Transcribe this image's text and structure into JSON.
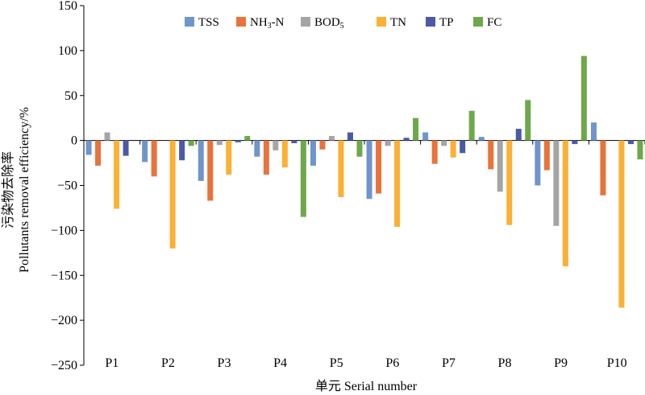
{
  "chart_data": {
    "type": "bar",
    "xlabel": "单元 Serial number",
    "ylabel_line1": "污染物去除率",
    "ylabel_line2": "Pollutants removal efficiency/%",
    "ylim": [
      -250,
      150
    ],
    "yticks": [
      150,
      100,
      50,
      0,
      -50,
      -100,
      -150,
      -200,
      -250
    ],
    "ytick_labels": [
      "150",
      "100",
      "50",
      "0",
      "−50",
      "−100",
      "−150",
      "−200",
      "−250"
    ],
    "grid": false,
    "legend_position": "top",
    "categories": [
      "P1",
      "P2",
      "P3",
      "P4",
      "P5",
      "P6",
      "P7",
      "P8",
      "P9",
      "P10"
    ],
    "series": [
      {
        "name": "TSS",
        "label_base": "TSS",
        "label_sub": "",
        "label_tail": "",
        "color": "#6f95cb",
        "values": [
          -16,
          -24,
          -45,
          -18,
          -28,
          -65,
          9,
          4,
          -50,
          20
        ]
      },
      {
        "name": "NH3-N",
        "label_base": "NH",
        "label_sub": "3",
        "label_tail": "-N",
        "color": "#e8733c",
        "values": [
          -28,
          -40,
          -67,
          -38,
          -10,
          -59,
          -26,
          -32,
          -33,
          -61
        ]
      },
      {
        "name": "BOD5",
        "label_base": "BOD",
        "label_sub": "5",
        "label_tail": "",
        "color": "#a5a5a5",
        "values": [
          9,
          0,
          -5,
          -11,
          5,
          -6,
          -6,
          -57,
          -95,
          0
        ]
      },
      {
        "name": "TN",
        "label_base": "TN",
        "label_sub": "",
        "label_tail": "",
        "color": "#fbb135",
        "values": [
          -76,
          -120,
          -38,
          -30,
          -63,
          -96,
          -19,
          -94,
          -140,
          -186
        ]
      },
      {
        "name": "TP",
        "label_base": "TP",
        "label_sub": "",
        "label_tail": "",
        "color": "#4b5aa6",
        "values": [
          -17,
          -22,
          -2,
          -3,
          9,
          3,
          -14,
          13,
          -4,
          -4
        ]
      },
      {
        "name": "FC",
        "label_base": "FC",
        "label_sub": "",
        "label_tail": "",
        "color": "#6fa84a",
        "values": [
          0,
          -6,
          5,
          -85,
          -18,
          25,
          33,
          45,
          94,
          -21
        ]
      }
    ]
  }
}
